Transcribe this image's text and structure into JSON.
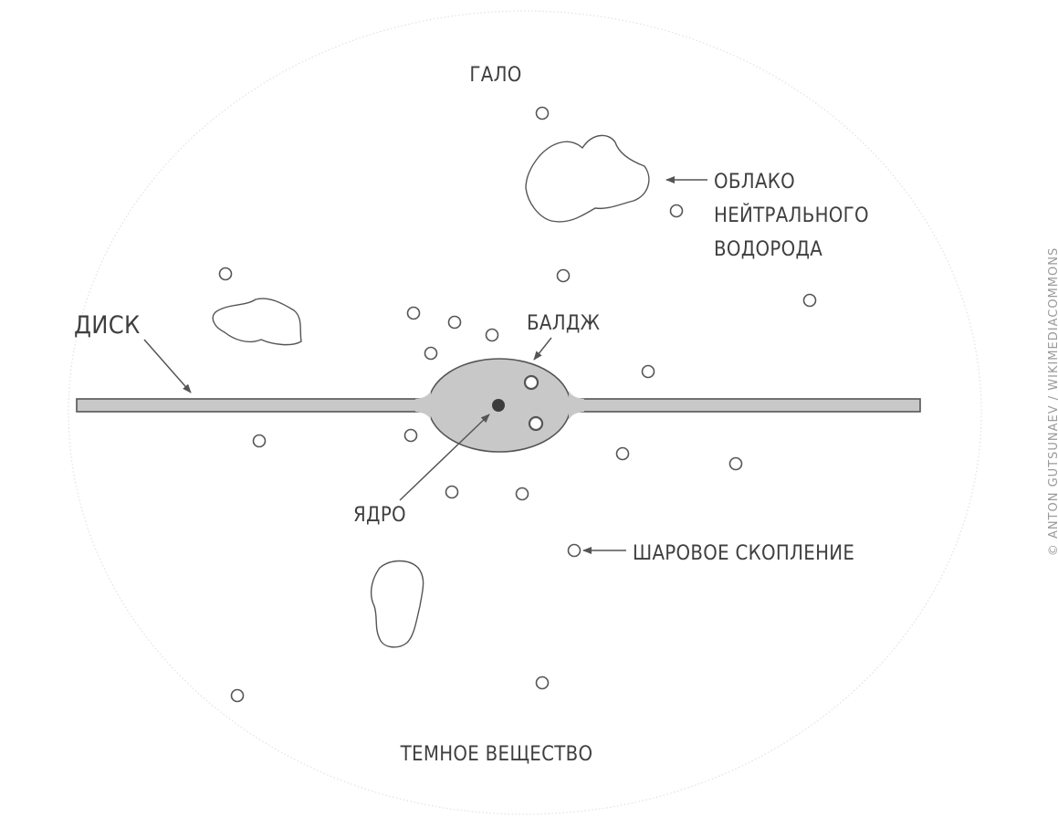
{
  "labels": {
    "halo": "ГАЛО",
    "cloud_line1": "ОБЛАКО",
    "cloud_line2": "НЕЙТРАЛЬНОГО",
    "cloud_line3": "ВОДОРОДА",
    "disk": "ДИСК",
    "bulge": "БАЛДЖ",
    "core": "ЯДРО",
    "globular_cluster": "ШАРОВОЕ СКОПЛЕНИЕ",
    "dark_matter": "ТЕМНОЕ ВЕЩЕСТВО"
  },
  "credit": "© ANTON GUTSUNAEV / WIKIMEDIACOMMONS",
  "colors": {
    "disk_fill": "#c8c8c8",
    "outline": "#555555",
    "text": "#3f3f3f",
    "halo_boundary": "#dedede"
  }
}
